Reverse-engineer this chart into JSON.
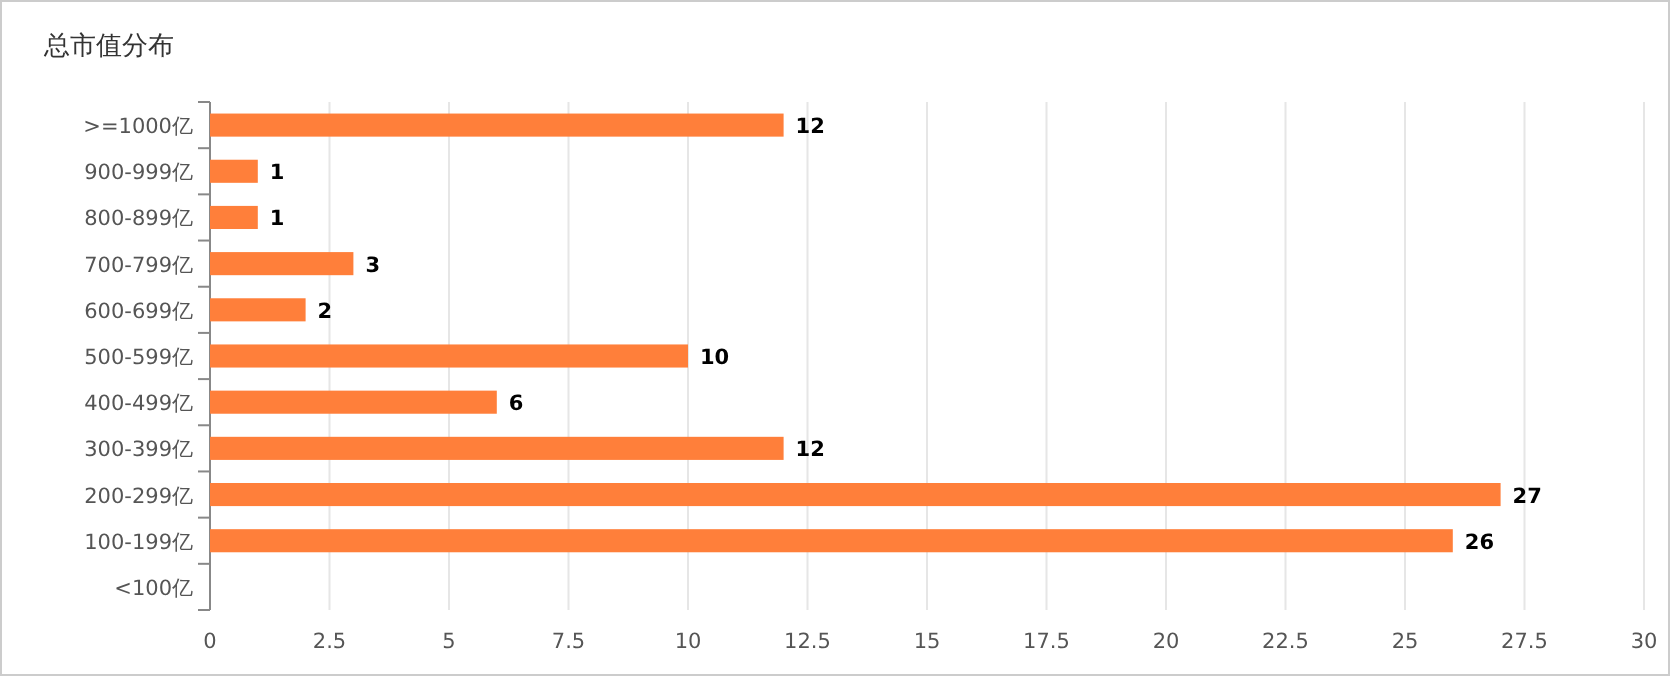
{
  "chart_data": {
    "type": "bar",
    "orientation": "horizontal",
    "title": "总市值分布",
    "categories": [
      ">=1000亿",
      "900-999亿",
      "800-899亿",
      "700-799亿",
      "600-699亿",
      "500-599亿",
      "400-499亿",
      "300-399亿",
      "200-299亿",
      "100-199亿",
      "<100亿"
    ],
    "values": [
      12,
      1,
      1,
      3,
      2,
      10,
      6,
      12,
      27,
      26,
      null
    ],
    "color": "#ff7f3a",
    "xlim": [
      0,
      30
    ],
    "xticks": [
      0,
      2.5,
      5,
      7.5,
      10,
      12.5,
      15,
      17.5,
      20,
      22.5,
      25,
      27.5,
      30
    ],
    "grid": "x",
    "data_labels": true
  }
}
